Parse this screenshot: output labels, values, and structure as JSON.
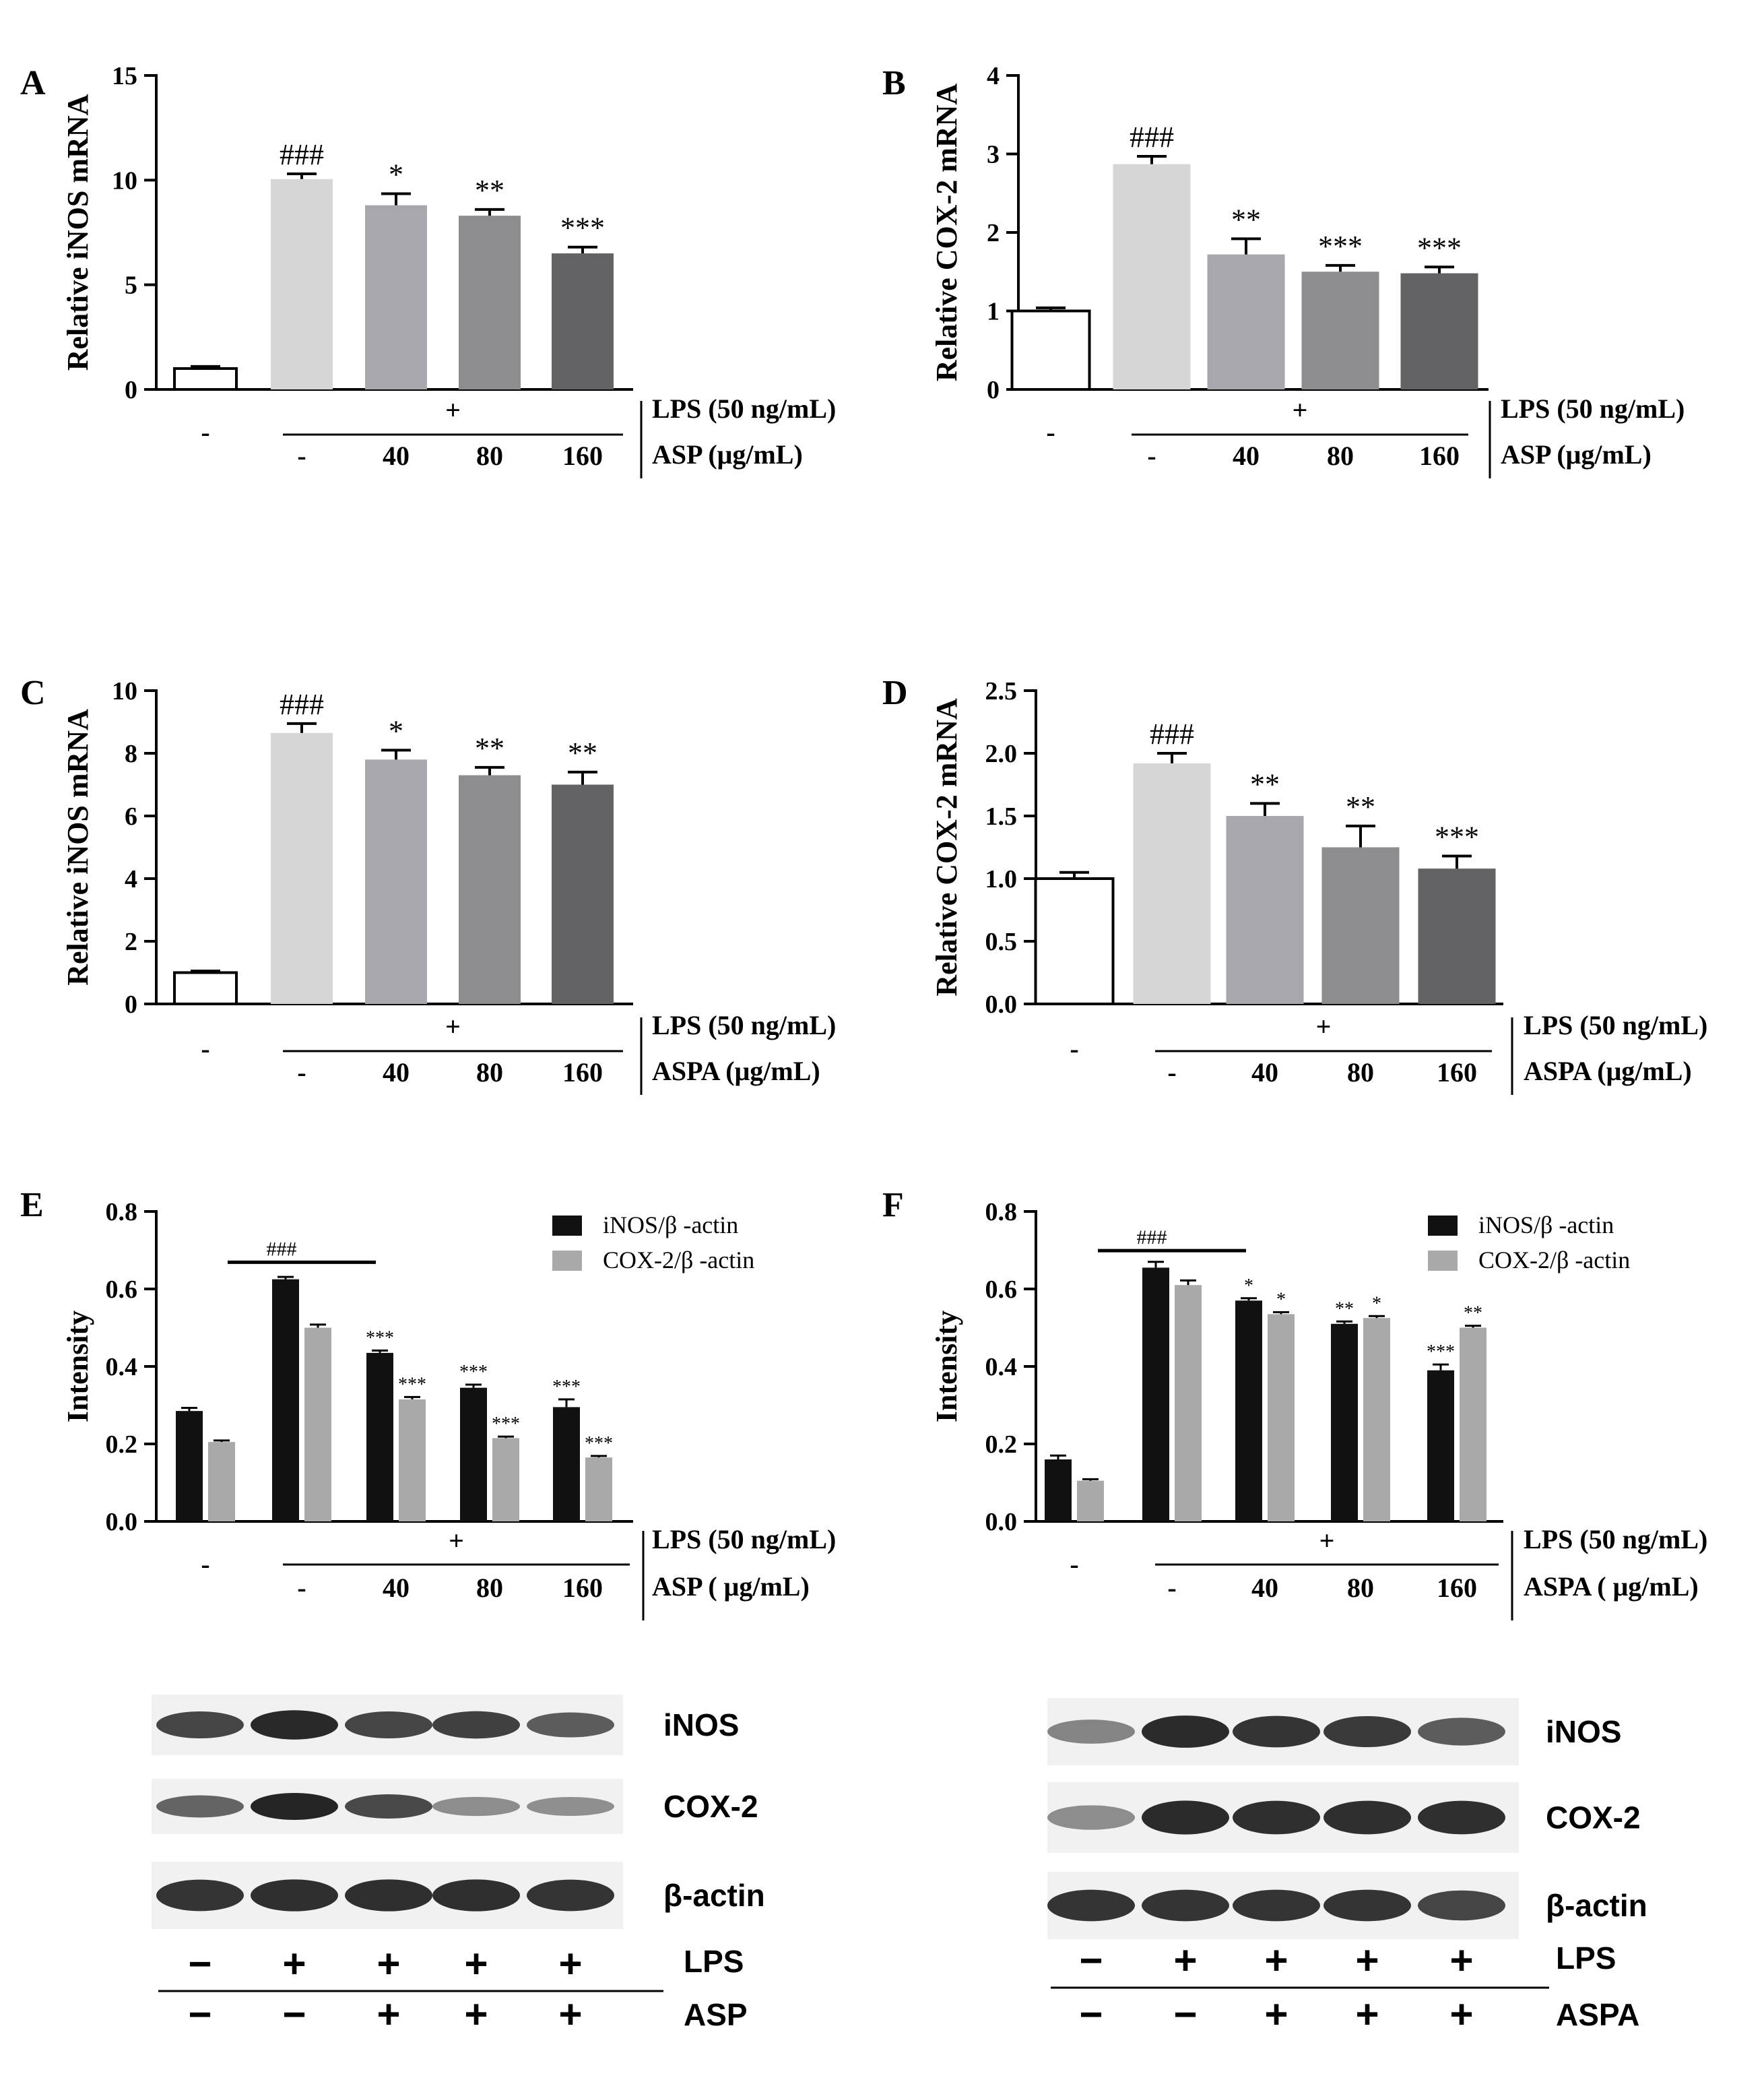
{
  "colors": {
    "black": "#000000",
    "ctrl_fill": "#ffffff",
    "lps_fill": "#d6d6d6",
    "d40_fill": "#a7a7ad",
    "d80_fill": "#8d8d8f",
    "d160_fill": "#636366",
    "inos_fill": "#111111",
    "cox_fill": "#a9a9a9",
    "band": "#1c1c1c",
    "blot_bg": "#f1f1f1"
  },
  "chart_data": [
    {
      "panel": "A",
      "type": "bar",
      "ylabel": "Relative iNOS mRNA",
      "ylim": [
        0,
        15
      ],
      "yticks": [
        "0",
        "5",
        "10",
        "15"
      ],
      "categories": [
        "-",
        "-",
        "40",
        "80",
        "160"
      ],
      "values": [
        1.0,
        10.05,
        8.8,
        8.3,
        6.5
      ],
      "errors": [
        0.1,
        0.25,
        0.55,
        0.3,
        0.3
      ],
      "annotations": [
        "",
        "###",
        "*",
        "**",
        "***"
      ],
      "plus_label": "+",
      "row1_label": "LPS (50 ng/mL)",
      "row2_label": "ASP (μg/mL)"
    },
    {
      "panel": "B",
      "type": "bar",
      "ylabel": "Relative COX-2 mRNA",
      "ylim": [
        0,
        4
      ],
      "yticks": [
        "0",
        "1",
        "2",
        "3",
        "4"
      ],
      "categories": [
        "-",
        "-",
        "40",
        "80",
        "160"
      ],
      "values": [
        1.0,
        2.87,
        1.72,
        1.5,
        1.48
      ],
      "errors": [
        0.04,
        0.1,
        0.2,
        0.08,
        0.08
      ],
      "annotations": [
        "",
        "###",
        "**",
        "***",
        "***"
      ],
      "plus_label": "+",
      "row1_label": "LPS (50 ng/mL)",
      "row2_label": "ASP (μg/mL)"
    },
    {
      "panel": "C",
      "type": "bar",
      "ylabel": "Relative iNOS mRNA",
      "ylim": [
        0,
        10
      ],
      "yticks": [
        "0",
        "2",
        "4",
        "6",
        "8",
        "10"
      ],
      "categories": [
        "-",
        "-",
        "40",
        "80",
        "160"
      ],
      "values": [
        1.0,
        8.65,
        7.8,
        7.3,
        7.0
      ],
      "errors": [
        0.05,
        0.3,
        0.3,
        0.25,
        0.4
      ],
      "annotations": [
        "",
        "###",
        "*",
        "**",
        "**"
      ],
      "plus_label": "+",
      "row1_label": "LPS (50 ng/mL)",
      "row2_label": "ASPA (μg/mL)"
    },
    {
      "panel": "D",
      "type": "bar",
      "ylabel": "Relative COX-2 mRNA",
      "ylim": [
        0,
        2.5
      ],
      "yticks": [
        "0.0",
        "0.5",
        "1.0",
        "1.5",
        "2.0",
        "2.5"
      ],
      "categories": [
        "-",
        "-",
        "40",
        "80",
        "160"
      ],
      "values": [
        1.0,
        1.92,
        1.5,
        1.25,
        1.08
      ],
      "errors": [
        0.05,
        0.08,
        0.1,
        0.17,
        0.1
      ],
      "annotations": [
        "",
        "###",
        "**",
        "**",
        "***"
      ],
      "plus_label": "+",
      "row1_label": "LPS (50 ng/mL)",
      "row2_label": "ASPA (μg/mL)"
    },
    {
      "panel": "E",
      "type": "bar",
      "ylabel": "Intensity",
      "ylim": [
        0,
        0.8
      ],
      "yticks": [
        "0.0",
        "0.2",
        "0.4",
        "0.6",
        "0.8"
      ],
      "categories": [
        "-",
        "-",
        "40",
        "80",
        "160"
      ],
      "series": [
        {
          "name": "iNOS/β -actin",
          "values": [
            0.285,
            0.625,
            0.435,
            0.345,
            0.295
          ],
          "errors": [
            0.008,
            0.006,
            0.006,
            0.008,
            0.02
          ],
          "annotations": [
            "",
            "",
            "***",
            "***",
            "***"
          ]
        },
        {
          "name": "COX-2/β -actin",
          "values": [
            0.205,
            0.5,
            0.315,
            0.215,
            0.165
          ],
          "errors": [
            0.004,
            0.008,
            0.006,
            0.004,
            0.004
          ],
          "annotations": [
            "",
            "",
            "***",
            "***",
            "***"
          ]
        }
      ],
      "group_annotation": "###",
      "legend": "top-right",
      "plus_label": "+",
      "row1_label": "LPS (50 ng/mL)",
      "row2_label": "ASP ( μg/mL)",
      "blot": {
        "labels": [
          "iNOS",
          "COX-2",
          "β-actin"
        ],
        "band_intensity": [
          [
            0.75,
            0.92,
            0.75,
            0.78,
            0.6
          ],
          [
            0.55,
            0.95,
            0.72,
            0.3,
            0.28
          ],
          [
            0.85,
            0.88,
            0.88,
            0.88,
            0.85
          ]
        ],
        "lps_row": [
          "−",
          "+",
          "+",
          "+",
          "+"
        ],
        "drug_row": [
          "−",
          "−",
          "+",
          "+",
          "+"
        ],
        "lps_label": "LPS",
        "drug_label": "ASP"
      }
    },
    {
      "panel": "F",
      "type": "bar",
      "ylabel": "Intensity",
      "ylim": [
        0,
        0.8
      ],
      "yticks": [
        "0.0",
        "0.2",
        "0.4",
        "0.6",
        "0.8"
      ],
      "categories": [
        "-",
        "-",
        "40",
        "80",
        "160"
      ],
      "series": [
        {
          "name": "iNOS/β -actin",
          "values": [
            0.16,
            0.655,
            0.57,
            0.51,
            0.39
          ],
          "errors": [
            0.01,
            0.015,
            0.006,
            0.006,
            0.015
          ],
          "annotations": [
            "",
            "",
            "*",
            "**",
            "***"
          ]
        },
        {
          "name": "COX-2/β -actin",
          "values": [
            0.105,
            0.61,
            0.535,
            0.525,
            0.5
          ],
          "errors": [
            0.004,
            0.012,
            0.005,
            0.005,
            0.005
          ],
          "annotations": [
            "",
            "",
            "*",
            "*",
            "**"
          ]
        }
      ],
      "group_annotation": "###",
      "legend": "top-right",
      "plus_label": "+",
      "row1_label": "LPS (50 ng/mL)",
      "row2_label": "ASPA ( μg/mL)",
      "blot": {
        "labels": [
          "iNOS",
          "COX-2",
          "β-actin"
        ],
        "band_intensity": [
          [
            0.35,
            0.9,
            0.85,
            0.82,
            0.6
          ],
          [
            0.3,
            0.9,
            0.88,
            0.88,
            0.88
          ],
          [
            0.85,
            0.85,
            0.85,
            0.85,
            0.75
          ]
        ],
        "lps_row": [
          "−",
          "+",
          "+",
          "+",
          "+"
        ],
        "drug_row": [
          "−",
          "−",
          "+",
          "+",
          "+"
        ],
        "lps_label": "LPS",
        "drug_label": "ASPA"
      }
    }
  ]
}
